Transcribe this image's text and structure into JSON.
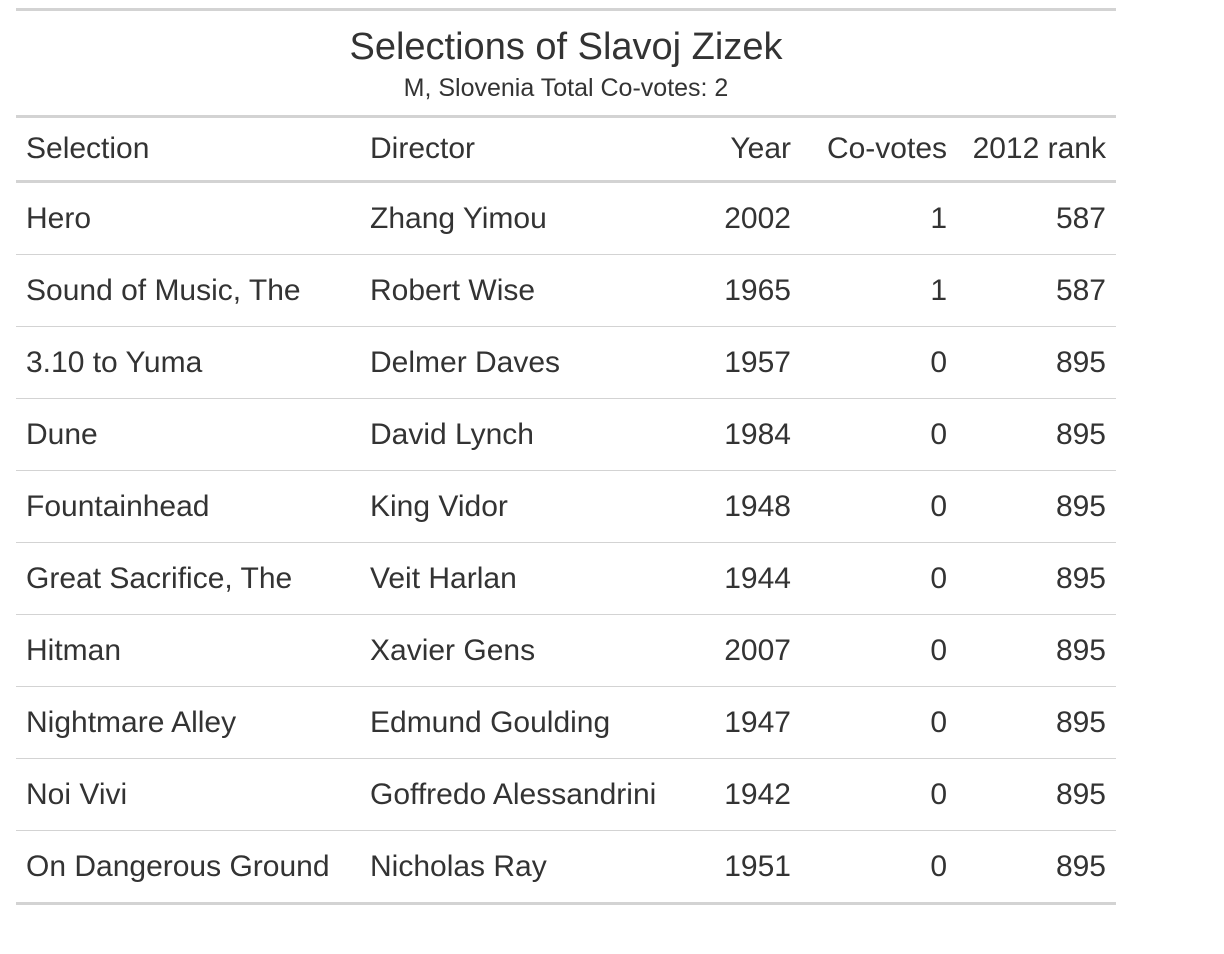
{
  "table": {
    "title": "Selections of Slavoj Zizek",
    "subtitle": "M, Slovenia Total Co-votes: 2",
    "columns": [
      "Selection",
      "Director",
      "Year",
      "Co-votes",
      "2012 rank"
    ],
    "rows": [
      {
        "selection": "Hero",
        "director": "Zhang Yimou",
        "year": "2002",
        "covotes": "1",
        "rank": "587"
      },
      {
        "selection": "Sound of Music, The",
        "director": "Robert Wise",
        "year": "1965",
        "covotes": "1",
        "rank": "587"
      },
      {
        "selection": "3.10 to Yuma",
        "director": "Delmer Daves",
        "year": "1957",
        "covotes": "0",
        "rank": "895"
      },
      {
        "selection": "Dune",
        "director": "David Lynch",
        "year": "1984",
        "covotes": "0",
        "rank": "895"
      },
      {
        "selection": "Fountainhead",
        "director": "King Vidor",
        "year": "1948",
        "covotes": "0",
        "rank": "895"
      },
      {
        "selection": "Great Sacrifice, The",
        "director": "Veit Harlan",
        "year": "1944",
        "covotes": "0",
        "rank": "895"
      },
      {
        "selection": "Hitman",
        "director": "Xavier Gens",
        "year": "2007",
        "covotes": "0",
        "rank": "895"
      },
      {
        "selection": "Nightmare Alley",
        "director": "Edmund Goulding",
        "year": "1947",
        "covotes": "0",
        "rank": "895"
      },
      {
        "selection": "Noi Vivi",
        "director": "Goffredo Alessandrini",
        "year": "1942",
        "covotes": "0",
        "rank": "895"
      },
      {
        "selection": "On Dangerous Ground",
        "director": "Nicholas Ray",
        "year": "1951",
        "covotes": "0",
        "rank": "895"
      }
    ]
  },
  "colors": {
    "text": "#333333",
    "rule": "#d3d3d3",
    "background": "#ffffff"
  }
}
